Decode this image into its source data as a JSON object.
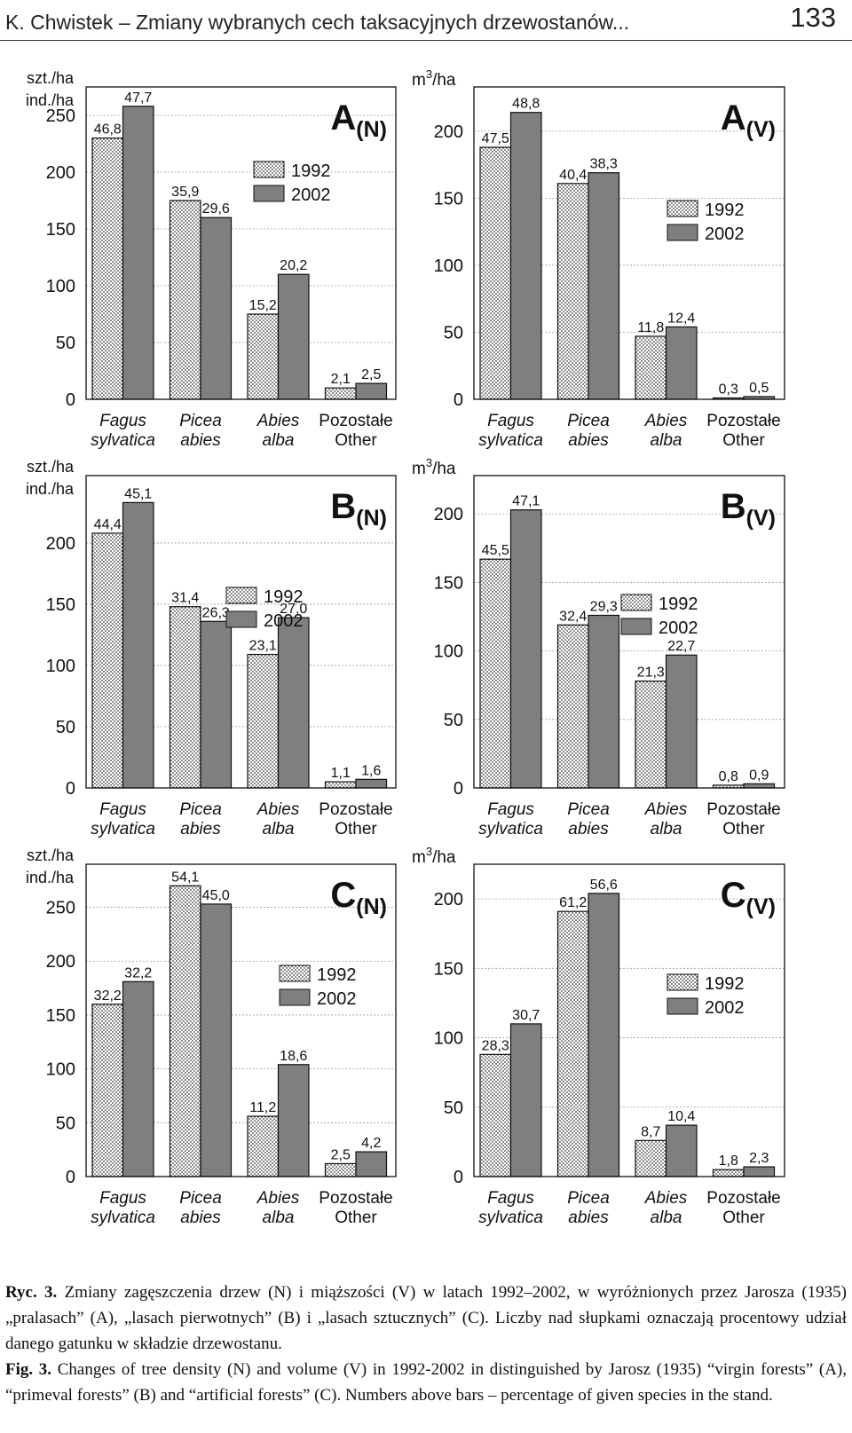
{
  "header": {
    "running_title": "K. Chwistek – Zmiany wybranych cech taksacyjnych drzewostanów...",
    "page_number": "133"
  },
  "legend": {
    "y1992": "1992",
    "y2002": "2002"
  },
  "species": [
    {
      "line1": "Fagus",
      "line2": "sylvatica",
      "italic": true
    },
    {
      "line1": "Picea",
      "line2": "abies",
      "italic": true
    },
    {
      "line1": "Abies",
      "line2": "alba",
      "italic": true
    },
    {
      "line1": "Pozostałe",
      "line2": "Other",
      "italic": false
    }
  ],
  "chart_data": [
    {
      "type": "bar",
      "panel": "A",
      "sub": "(N)",
      "ylabel": [
        "szt./ha",
        "ind./ha"
      ],
      "ylim": [
        0,
        275
      ],
      "yticks": [
        0,
        50,
        100,
        150,
        200,
        250
      ],
      "categories": [
        "Fagus sylvatica",
        "Picea abies",
        "Abies alba",
        "Pozostałe Other"
      ],
      "series": [
        {
          "name": "1992",
          "values": [
            230,
            175,
            75,
            10
          ],
          "labels": [
            "46,8",
            "35,9",
            "15,2",
            "2,1"
          ]
        },
        {
          "name": "2002",
          "values": [
            258,
            160,
            110,
            14
          ],
          "labels": [
            "47,7",
            "29,6",
            "20,2",
            "2,5"
          ]
        }
      ],
      "legend_position": "top-center"
    },
    {
      "type": "bar",
      "panel": "A",
      "sub": "(V)",
      "ylabel": [
        "m3/ha"
      ],
      "ylim": [
        0,
        233
      ],
      "yticks": [
        0,
        50,
        100,
        150,
        200
      ],
      "categories": [
        "Fagus sylvatica",
        "Picea abies",
        "Abies alba",
        "Pozostałe Other"
      ],
      "series": [
        {
          "name": "1992",
          "values": [
            188,
            161,
            47,
            1
          ],
          "labels": [
            "47,5",
            "40,4",
            "11,8",
            "0,3"
          ]
        },
        {
          "name": "2002",
          "values": [
            214,
            169,
            54,
            2
          ],
          "labels": [
            "48,8",
            "38,3",
            "12,4",
            "0,5"
          ]
        }
      ],
      "legend_position": "right"
    },
    {
      "type": "bar",
      "panel": "B",
      "sub": "(N)",
      "ylabel": [
        "szt./ha",
        "ind./ha"
      ],
      "ylim": [
        0,
        255
      ],
      "yticks": [
        0,
        50,
        100,
        150,
        200
      ],
      "categories": [
        "Fagus sylvatica",
        "Picea abies",
        "Abies alba",
        "Pozostałe Other"
      ],
      "series": [
        {
          "name": "1992",
          "values": [
            208,
            148,
            109,
            5
          ],
          "labels": [
            "44,4",
            "31,4",
            "23,1",
            "1,1"
          ]
        },
        {
          "name": "2002",
          "values": [
            233,
            136,
            139,
            7
          ],
          "labels": [
            "45,1",
            "26,3",
            "27,0",
            "1,6"
          ]
        }
      ],
      "legend_position": "top-center"
    },
    {
      "type": "bar",
      "panel": "B",
      "sub": "(V)",
      "ylabel": [
        "m3/ha"
      ],
      "ylim": [
        0,
        228
      ],
      "yticks": [
        0,
        50,
        100,
        150,
        200
      ],
      "categories": [
        "Fagus sylvatica",
        "Picea abies",
        "Abies alba",
        "Pozostałe Other"
      ],
      "series": [
        {
          "name": "1992",
          "values": [
            167,
            119,
            78,
            2
          ],
          "labels": [
            "45,5",
            "32,4",
            "21,3",
            "0,8"
          ]
        },
        {
          "name": "2002",
          "values": [
            203,
            126,
            97,
            3
          ],
          "labels": [
            "47,1",
            "29,3",
            "22,7",
            "0,9"
          ]
        }
      ],
      "legend_position": "right"
    },
    {
      "type": "bar",
      "panel": "C",
      "sub": "(N)",
      "ylabel": [
        "szt./ha",
        "ind./ha"
      ],
      "ylim": [
        0,
        290
      ],
      "yticks": [
        0,
        50,
        100,
        150,
        200,
        250
      ],
      "categories": [
        "Fagus sylvatica",
        "Picea abies",
        "Abies alba",
        "Pozostałe Other"
      ],
      "series": [
        {
          "name": "1992",
          "values": [
            160,
            270,
            56,
            12
          ],
          "labels": [
            "32,2",
            "54,1",
            "11,2",
            "2,5"
          ]
        },
        {
          "name": "2002",
          "values": [
            181,
            253,
            104,
            23
          ],
          "labels": [
            "32,2",
            "45,0",
            "18,6",
            "4,2"
          ]
        }
      ],
      "legend_position": "right"
    },
    {
      "type": "bar",
      "panel": "C",
      "sub": "(V)",
      "ylabel": [
        "m3/ha"
      ],
      "ylim": [
        0,
        225
      ],
      "yticks": [
        0,
        50,
        100,
        150,
        200
      ],
      "categories": [
        "Fagus sylvatica",
        "Picea abies",
        "Abies alba",
        "Pozostałe Other"
      ],
      "series": [
        {
          "name": "1992",
          "values": [
            88,
            191,
            26,
            5
          ],
          "labels": [
            "28,3",
            "61,2",
            "8,7",
            "1,8"
          ]
        },
        {
          "name": "2002",
          "values": [
            110,
            204,
            37,
            7
          ],
          "labels": [
            "30,7",
            "56,6",
            "10,4",
            "2,3"
          ]
        }
      ],
      "legend_position": "right"
    }
  ],
  "caption": {
    "pl_label": "Ryc. 3.",
    "pl_text": "Zmiany zagęszczenia drzew (N) i miąższości (V) w latach 1992–2002, w wyróżnionych przez Jarosza (1935) „pralasach” (A), „lasach pierwotnych” (B) i „lasach sztucznych” (C). Liczby nad słupkami oznaczają procentowy udział danego gatunku w składzie drzewostanu.",
    "en_label": "Fig. 3.",
    "en_text": "Changes of tree density (N) and volume (V) in 1992-2002 in distinguished by Jarosz (1935) “virgin forests” (A), “primeval forests” (B) and “artificial forests” (C). Numbers above bars – percentage of given species in the stand."
  }
}
